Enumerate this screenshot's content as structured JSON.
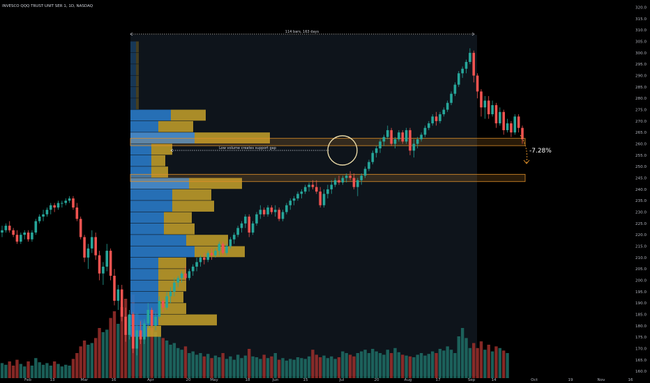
{
  "title": "INVESCO QQQ TRUST UNIT SER 1, 1D, NASDAQ",
  "colors": {
    "background": "#000000",
    "up": "#26a69a",
    "down": "#ef5350",
    "vol_up": "#1f6f66",
    "vol_down": "#9c2f2c",
    "vp_blue": "#2979c6",
    "vp_gold": "#c6a12a",
    "zone": "#e0902a",
    "circle": "#e9d9a6"
  },
  "annotations": {
    "range_label": "114 bars, 163 days",
    "gap_label": "Low volume creates support gap",
    "change_label": "-7.28%"
  },
  "chart_data": {
    "type": "candlestick",
    "symbol": "QQQ",
    "exchange": "NASDAQ",
    "interval": "1D",
    "ylim": [
      157,
      322
    ],
    "y_ticks": [
      160,
      165,
      170,
      175,
      180,
      185,
      190,
      195,
      200,
      205,
      210,
      215,
      220,
      225,
      230,
      235,
      240,
      245,
      250,
      255,
      260,
      265,
      270,
      275,
      280,
      285,
      290,
      295,
      300,
      305,
      310,
      315,
      320
    ],
    "x_ticks": [
      "Feb",
      "13",
      "Mar",
      "16",
      "Apr",
      "20",
      "May",
      "18",
      "Jun",
      "15",
      "Jul",
      "20",
      "Aug",
      "17",
      "Sep",
      "14",
      "Oct",
      "19",
      "Nov",
      "16"
    ],
    "support_zones": [
      [
        259.2,
        262.4
      ],
      [
        243.4,
        246.6
      ]
    ],
    "measured_change_pct": -7.28,
    "candles": [
      {
        "o": 221,
        "h": 224,
        "l": 219,
        "c": 222
      },
      {
        "o": 222,
        "h": 225,
        "l": 221,
        "c": 224
      },
      {
        "o": 224,
        "h": 226,
        "l": 221,
        "c": 222
      },
      {
        "o": 222,
        "h": 223,
        "l": 219,
        "c": 220
      },
      {
        "o": 220,
        "h": 222,
        "l": 216,
        "c": 217
      },
      {
        "o": 217,
        "h": 221,
        "l": 216,
        "c": 220
      },
      {
        "o": 220,
        "h": 222,
        "l": 218,
        "c": 221
      },
      {
        "o": 221,
        "h": 222,
        "l": 217,
        "c": 218
      },
      {
        "o": 218,
        "h": 222,
        "l": 217,
        "c": 221
      },
      {
        "o": 221,
        "h": 227,
        "l": 220,
        "c": 226
      },
      {
        "o": 226,
        "h": 229,
        "l": 225,
        "c": 228
      },
      {
        "o": 228,
        "h": 231,
        "l": 226,
        "c": 229
      },
      {
        "o": 229,
        "h": 232,
        "l": 228,
        "c": 231
      },
      {
        "o": 231,
        "h": 234,
        "l": 229,
        "c": 233
      },
      {
        "o": 233,
        "h": 234,
        "l": 230,
        "c": 232
      },
      {
        "o": 232,
        "h": 235,
        "l": 231,
        "c": 234
      },
      {
        "o": 234,
        "h": 235,
        "l": 232,
        "c": 234
      },
      {
        "o": 234,
        "h": 236,
        "l": 233,
        "c": 235
      },
      {
        "o": 235,
        "h": 237,
        "l": 234,
        "c": 236
      },
      {
        "o": 236,
        "h": 237,
        "l": 231,
        "c": 232
      },
      {
        "o": 232,
        "h": 234,
        "l": 226,
        "c": 227
      },
      {
        "o": 227,
        "h": 228,
        "l": 218,
        "c": 219
      },
      {
        "o": 219,
        "h": 220,
        "l": 208,
        "c": 210
      },
      {
        "o": 210,
        "h": 216,
        "l": 205,
        "c": 214
      },
      {
        "o": 214,
        "h": 222,
        "l": 212,
        "c": 219
      },
      {
        "o": 219,
        "h": 221,
        "l": 209,
        "c": 211
      },
      {
        "o": 211,
        "h": 213,
        "l": 200,
        "c": 203
      },
      {
        "o": 203,
        "h": 208,
        "l": 198,
        "c": 206
      },
      {
        "o": 206,
        "h": 216,
        "l": 204,
        "c": 213
      },
      {
        "o": 213,
        "h": 214,
        "l": 200,
        "c": 202
      },
      {
        "o": 202,
        "h": 205,
        "l": 189,
        "c": 191
      },
      {
        "o": 191,
        "h": 198,
        "l": 187,
        "c": 196
      },
      {
        "o": 196,
        "h": 198,
        "l": 182,
        "c": 184
      },
      {
        "o": 184,
        "h": 188,
        "l": 173,
        "c": 176
      },
      {
        "o": 176,
        "h": 187,
        "l": 174,
        "c": 185
      },
      {
        "o": 185,
        "h": 186,
        "l": 168,
        "c": 170
      },
      {
        "o": 170,
        "h": 180,
        "l": 167,
        "c": 178
      },
      {
        "o": 178,
        "h": 182,
        "l": 172,
        "c": 174
      },
      {
        "o": 174,
        "h": 183,
        "l": 172,
        "c": 181
      },
      {
        "o": 181,
        "h": 190,
        "l": 179,
        "c": 187
      },
      {
        "o": 187,
        "h": 188,
        "l": 178,
        "c": 180
      },
      {
        "o": 180,
        "h": 186,
        "l": 178,
        "c": 184
      },
      {
        "o": 184,
        "h": 193,
        "l": 183,
        "c": 191
      },
      {
        "o": 191,
        "h": 192,
        "l": 186,
        "c": 188
      },
      {
        "o": 188,
        "h": 195,
        "l": 187,
        "c": 193
      },
      {
        "o": 193,
        "h": 197,
        "l": 190,
        "c": 195
      },
      {
        "o": 195,
        "h": 201,
        "l": 193,
        "c": 199
      },
      {
        "o": 199,
        "h": 202,
        "l": 197,
        "c": 201
      },
      {
        "o": 201,
        "h": 204,
        "l": 199,
        "c": 203
      },
      {
        "o": 203,
        "h": 206,
        "l": 200,
        "c": 201
      },
      {
        "o": 201,
        "h": 205,
        "l": 200,
        "c": 204
      },
      {
        "o": 204,
        "h": 207,
        "l": 202,
        "c": 206
      },
      {
        "o": 206,
        "h": 210,
        "l": 204,
        "c": 208
      },
      {
        "o": 208,
        "h": 211,
        "l": 206,
        "c": 210
      },
      {
        "o": 210,
        "h": 212,
        "l": 207,
        "c": 209
      },
      {
        "o": 209,
        "h": 213,
        "l": 208,
        "c": 212
      },
      {
        "o": 212,
        "h": 214,
        "l": 209,
        "c": 211
      },
      {
        "o": 211,
        "h": 214,
        "l": 210,
        "c": 213
      },
      {
        "o": 213,
        "h": 217,
        "l": 211,
        "c": 216
      },
      {
        "o": 216,
        "h": 217,
        "l": 211,
        "c": 212
      },
      {
        "o": 212,
        "h": 216,
        "l": 211,
        "c": 215
      },
      {
        "o": 215,
        "h": 219,
        "l": 214,
        "c": 218
      },
      {
        "o": 218,
        "h": 221,
        "l": 216,
        "c": 220
      },
      {
        "o": 220,
        "h": 224,
        "l": 219,
        "c": 223
      },
      {
        "o": 223,
        "h": 226,
        "l": 221,
        "c": 225
      },
      {
        "o": 225,
        "h": 229,
        "l": 223,
        "c": 228
      },
      {
        "o": 228,
        "h": 229,
        "l": 219,
        "c": 221
      },
      {
        "o": 221,
        "h": 226,
        "l": 220,
        "c": 225
      },
      {
        "o": 225,
        "h": 230,
        "l": 224,
        "c": 229
      },
      {
        "o": 229,
        "h": 233,
        "l": 227,
        "c": 231
      },
      {
        "o": 231,
        "h": 232,
        "l": 228,
        "c": 229
      },
      {
        "o": 229,
        "h": 233,
        "l": 228,
        "c": 232
      },
      {
        "o": 232,
        "h": 233,
        "l": 229,
        "c": 230
      },
      {
        "o": 230,
        "h": 233,
        "l": 228,
        "c": 231
      },
      {
        "o": 231,
        "h": 232,
        "l": 226,
        "c": 227
      },
      {
        "o": 227,
        "h": 231,
        "l": 226,
        "c": 230
      },
      {
        "o": 230,
        "h": 234,
        "l": 229,
        "c": 233
      },
      {
        "o": 233,
        "h": 236,
        "l": 231,
        "c": 235
      },
      {
        "o": 235,
        "h": 237,
        "l": 233,
        "c": 236
      },
      {
        "o": 236,
        "h": 239,
        "l": 235,
        "c": 238
      },
      {
        "o": 238,
        "h": 240,
        "l": 236,
        "c": 239
      },
      {
        "o": 239,
        "h": 242,
        "l": 238,
        "c": 241
      },
      {
        "o": 241,
        "h": 243,
        "l": 239,
        "c": 242
      },
      {
        "o": 242,
        "h": 244,
        "l": 240,
        "c": 241
      },
      {
        "o": 241,
        "h": 244,
        "l": 238,
        "c": 239
      },
      {
        "o": 239,
        "h": 241,
        "l": 232,
        "c": 233
      },
      {
        "o": 233,
        "h": 240,
        "l": 232,
        "c": 238
      },
      {
        "o": 238,
        "h": 242,
        "l": 236,
        "c": 240
      },
      {
        "o": 240,
        "h": 244,
        "l": 238,
        "c": 242
      },
      {
        "o": 242,
        "h": 245,
        "l": 241,
        "c": 244
      },
      {
        "o": 244,
        "h": 246,
        "l": 242,
        "c": 243
      },
      {
        "o": 243,
        "h": 246,
        "l": 242,
        "c": 245
      },
      {
        "o": 245,
        "h": 247,
        "l": 243,
        "c": 246
      },
      {
        "o": 246,
        "h": 248,
        "l": 244,
        "c": 245
      },
      {
        "o": 245,
        "h": 247,
        "l": 240,
        "c": 241
      },
      {
        "o": 241,
        "h": 245,
        "l": 237,
        "c": 244
      },
      {
        "o": 244,
        "h": 247,
        "l": 242,
        "c": 246
      },
      {
        "o": 246,
        "h": 250,
        "l": 245,
        "c": 249
      },
      {
        "o": 249,
        "h": 253,
        "l": 248,
        "c": 252
      },
      {
        "o": 252,
        "h": 257,
        "l": 251,
        "c": 256
      },
      {
        "o": 256,
        "h": 259,
        "l": 254,
        "c": 258
      },
      {
        "o": 258,
        "h": 262,
        "l": 256,
        "c": 261
      },
      {
        "o": 261,
        "h": 264,
        "l": 259,
        "c": 263
      },
      {
        "o": 263,
        "h": 268,
        "l": 262,
        "c": 266
      },
      {
        "o": 266,
        "h": 267,
        "l": 259,
        "c": 260
      },
      {
        "o": 260,
        "h": 263,
        "l": 258,
        "c": 262
      },
      {
        "o": 262,
        "h": 266,
        "l": 261,
        "c": 265
      },
      {
        "o": 265,
        "h": 266,
        "l": 260,
        "c": 261
      },
      {
        "o": 261,
        "h": 267,
        "l": 260,
        "c": 266
      },
      {
        "o": 266,
        "h": 267,
        "l": 255,
        "c": 257
      },
      {
        "o": 257,
        "h": 262,
        "l": 254,
        "c": 260
      },
      {
        "o": 260,
        "h": 263,
        "l": 258,
        "c": 262
      },
      {
        "o": 262,
        "h": 265,
        "l": 261,
        "c": 264
      },
      {
        "o": 264,
        "h": 268,
        "l": 263,
        "c": 267
      },
      {
        "o": 267,
        "h": 270,
        "l": 266,
        "c": 269
      },
      {
        "o": 269,
        "h": 273,
        "l": 268,
        "c": 272
      },
      {
        "o": 272,
        "h": 274,
        "l": 268,
        "c": 270
      },
      {
        "o": 270,
        "h": 274,
        "l": 269,
        "c": 273
      },
      {
        "o": 273,
        "h": 276,
        "l": 272,
        "c": 275
      },
      {
        "o": 275,
        "h": 279,
        "l": 274,
        "c": 278
      },
      {
        "o": 278,
        "h": 283,
        "l": 277,
        "c": 282
      },
      {
        "o": 282,
        "h": 287,
        "l": 281,
        "c": 286
      },
      {
        "o": 286,
        "h": 292,
        "l": 285,
        "c": 291
      },
      {
        "o": 291,
        "h": 294,
        "l": 289,
        "c": 293
      },
      {
        "o": 293,
        "h": 297,
        "l": 291,
        "c": 296
      },
      {
        "o": 296,
        "h": 302,
        "l": 295,
        "c": 300
      },
      {
        "o": 300,
        "h": 301,
        "l": 287,
        "c": 290
      },
      {
        "o": 290,
        "h": 291,
        "l": 280,
        "c": 283
      },
      {
        "o": 283,
        "h": 284,
        "l": 272,
        "c": 276
      },
      {
        "o": 276,
        "h": 281,
        "l": 271,
        "c": 279
      },
      {
        "o": 279,
        "h": 281,
        "l": 271,
        "c": 273
      },
      {
        "o": 273,
        "h": 279,
        "l": 272,
        "c": 277
      },
      {
        "o": 277,
        "h": 278,
        "l": 267,
        "c": 269
      },
      {
        "o": 269,
        "h": 276,
        "l": 268,
        "c": 274
      },
      {
        "o": 274,
        "h": 275,
        "l": 264,
        "c": 266
      },
      {
        "o": 266,
        "h": 271,
        "l": 265,
        "c": 269
      },
      {
        "o": 269,
        "h": 270,
        "l": 263,
        "c": 265
      },
      {
        "o": 265,
        "h": 273,
        "l": 264,
        "c": 272
      },
      {
        "o": 272,
        "h": 273,
        "l": 265,
        "c": 267
      },
      {
        "o": 267,
        "h": 268,
        "l": 260,
        "c": 262
      }
    ],
    "volume": [
      0.18,
      0.16,
      0.2,
      0.15,
      0.22,
      0.17,
      0.14,
      0.2,
      0.15,
      0.24,
      0.19,
      0.16,
      0.18,
      0.15,
      0.2,
      0.17,
      0.14,
      0.16,
      0.15,
      0.23,
      0.3,
      0.38,
      0.45,
      0.4,
      0.42,
      0.48,
      0.6,
      0.55,
      0.58,
      0.72,
      0.8,
      0.65,
      0.85,
      0.95,
      0.75,
      1.0,
      0.78,
      0.7,
      0.68,
      0.62,
      0.6,
      0.55,
      0.5,
      0.48,
      0.45,
      0.4,
      0.42,
      0.36,
      0.34,
      0.38,
      0.3,
      0.32,
      0.28,
      0.3,
      0.26,
      0.29,
      0.24,
      0.27,
      0.25,
      0.3,
      0.23,
      0.26,
      0.22,
      0.28,
      0.24,
      0.27,
      0.35,
      0.26,
      0.25,
      0.23,
      0.28,
      0.24,
      0.26,
      0.3,
      0.22,
      0.24,
      0.21,
      0.23,
      0.22,
      0.25,
      0.24,
      0.23,
      0.26,
      0.34,
      0.28,
      0.25,
      0.27,
      0.24,
      0.26,
      0.23,
      0.25,
      0.32,
      0.3,
      0.28,
      0.26,
      0.3,
      0.32,
      0.34,
      0.3,
      0.35,
      0.32,
      0.3,
      0.28,
      0.34,
      0.3,
      0.36,
      0.31,
      0.28,
      0.27,
      0.26,
      0.25,
      0.28,
      0.3,
      0.27,
      0.29,
      0.32,
      0.3,
      0.35,
      0.33,
      0.38,
      0.34,
      0.3,
      0.5,
      0.6,
      0.48,
      0.36,
      0.42,
      0.36,
      0.44,
      0.34,
      0.4,
      0.32,
      0.38,
      0.36,
      0.33,
      0.3
    ],
    "volume_profile": [
      {
        "price": 302.5,
        "up": 0.0,
        "down": 0.0
      },
      {
        "price": 297.5,
        "up": 0.0,
        "down": 0.0
      },
      {
        "price": 292.5,
        "up": 0.0,
        "down": 0.0
      },
      {
        "price": 287.5,
        "up": 0.0,
        "down": 0.0
      },
      {
        "price": 282.5,
        "up": 0.0,
        "down": 0.0
      },
      {
        "price": 277.5,
        "up": 0.0,
        "down": 0.0
      },
      {
        "price": 272.5,
        "up": 0.29,
        "down": 0.25
      },
      {
        "price": 267.5,
        "up": 0.2,
        "down": 0.25
      },
      {
        "price": 262.5,
        "up": 0.46,
        "down": 0.54
      },
      {
        "price": 257.5,
        "up": 0.15,
        "down": 0.15
      },
      {
        "price": 252.5,
        "up": 0.15,
        "down": 0.1
      },
      {
        "price": 247.5,
        "up": 0.15,
        "down": 0.12
      },
      {
        "price": 242.5,
        "up": 0.42,
        "down": 0.38
      },
      {
        "price": 237.5,
        "up": 0.3,
        "down": 0.28
      },
      {
        "price": 232.5,
        "up": 0.3,
        "down": 0.3
      },
      {
        "price": 227.5,
        "up": 0.24,
        "down": 0.2
      },
      {
        "price": 222.5,
        "up": 0.24,
        "down": 0.22
      },
      {
        "price": 217.5,
        "up": 0.4,
        "down": 0.3
      },
      {
        "price": 212.5,
        "up": 0.46,
        "down": 0.36
      },
      {
        "price": 207.5,
        "up": 0.2,
        "down": 0.2
      },
      {
        "price": 202.5,
        "up": 0.2,
        "down": 0.2
      },
      {
        "price": 197.5,
        "up": 0.2,
        "down": 0.2
      },
      {
        "price": 192.5,
        "up": 0.2,
        "down": 0.18
      },
      {
        "price": 187.5,
        "up": 0.2,
        "down": 0.2
      },
      {
        "price": 182.5,
        "up": 0.2,
        "down": 0.42
      },
      {
        "price": 177.5,
        "up": 0.12,
        "down": 0.1
      }
    ]
  }
}
